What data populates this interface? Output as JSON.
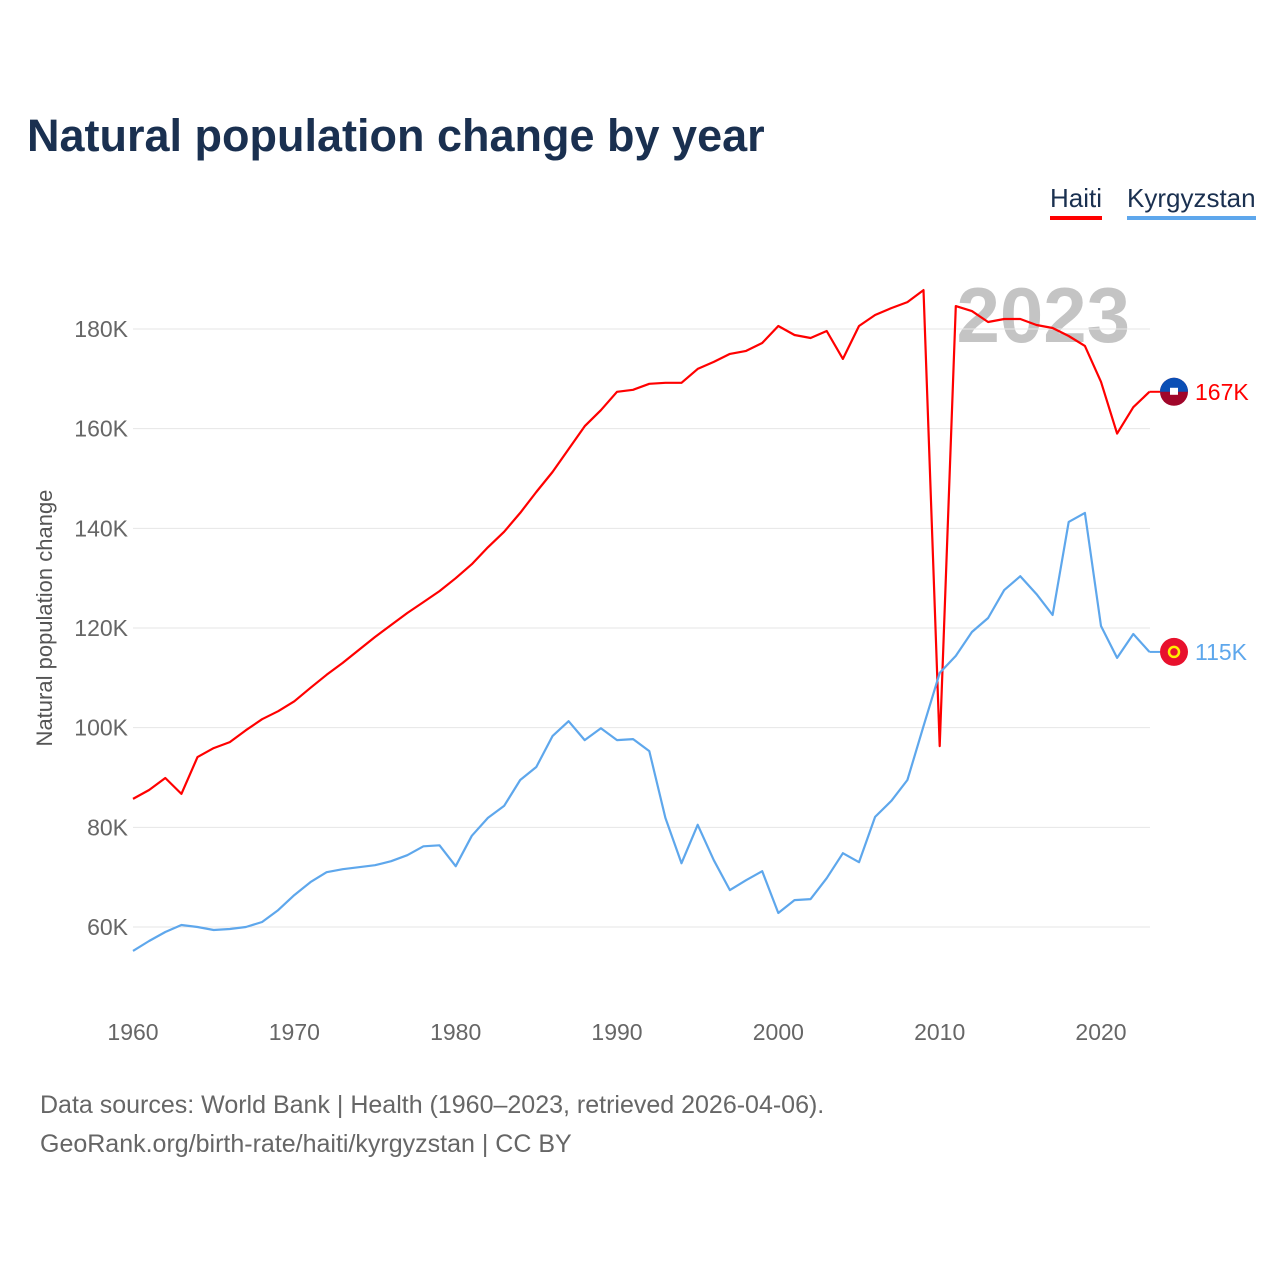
{
  "chart_data": {
    "type": "line",
    "title": "Natural population change by year",
    "xlabel": "",
    "ylabel": "Natural population change",
    "xlim": [
      1960,
      2023
    ],
    "ylim": [
      50000,
      190000
    ],
    "x_ticks": [
      1960,
      1970,
      1980,
      1990,
      2000,
      2010,
      2020
    ],
    "x_tick_labels": [
      "1960",
      "1970",
      "1980",
      "1990",
      "2000",
      "2010",
      "2020"
    ],
    "y_ticks": [
      60000,
      80000,
      100000,
      120000,
      140000,
      160000,
      180000
    ],
    "y_tick_labels": [
      "60K",
      "80K",
      "100K",
      "120K",
      "140K",
      "160K",
      "180K"
    ],
    "grid": true,
    "legend_position": "top-right",
    "year_watermark": "2023",
    "x": [
      1960,
      1961,
      1962,
      1963,
      1964,
      1965,
      1966,
      1967,
      1968,
      1969,
      1970,
      1971,
      1972,
      1973,
      1974,
      1975,
      1976,
      1977,
      1978,
      1979,
      1980,
      1981,
      1982,
      1983,
      1984,
      1985,
      1986,
      1987,
      1988,
      1989,
      1990,
      1991,
      1992,
      1993,
      1994,
      1995,
      1996,
      1997,
      1998,
      1999,
      2000,
      2001,
      2002,
      2003,
      2004,
      2005,
      2006,
      2007,
      2008,
      2009,
      2010,
      2011,
      2012,
      2013,
      2014,
      2015,
      2016,
      2017,
      2018,
      2019,
      2020,
      2021,
      2022,
      2023
    ],
    "series": [
      {
        "name": "Haiti",
        "color": "#ff0000",
        "end_label": "167K",
        "values": [
          85700,
          87500,
          89900,
          86700,
          94100,
          95900,
          97100,
          99500,
          101700,
          103300,
          105300,
          108000,
          110600,
          113000,
          115600,
          118200,
          120600,
          123000,
          125200,
          127400,
          130000,
          132800,
          136200,
          139300,
          143100,
          147300,
          151300,
          155900,
          160500,
          163700,
          167400,
          167800,
          169000,
          169200,
          169200,
          172000,
          173400,
          175000,
          175600,
          177200,
          180600,
          178800,
          178200,
          179600,
          174000,
          180600,
          182800,
          184200,
          185400,
          187800,
          96300,
          184600,
          183600,
          181400,
          182000,
          182000,
          180800,
          180200,
          178600,
          176600,
          169400,
          159000,
          164300,
          167400
        ]
      },
      {
        "name": "Kyrgyzstan",
        "color": "#5ea7ec",
        "end_label": "115K",
        "values": [
          55200,
          57200,
          59000,
          60400,
          60000,
          59400,
          59600,
          60000,
          61000,
          63400,
          66400,
          69000,
          71000,
          71600,
          72000,
          72400,
          73200,
          74400,
          76200,
          76400,
          72200,
          78300,
          81900,
          84300,
          89500,
          92100,
          98300,
          101300,
          97500,
          99900,
          97500,
          97700,
          95300,
          81900,
          72800,
          80500,
          73400,
          67400,
          69400,
          71200,
          62800,
          65400,
          65600,
          69800,
          74800,
          73000,
          82100,
          85300,
          89500,
          100300,
          111000,
          114400,
          119200,
          122000,
          127600,
          130400,
          126800,
          122600,
          141300,
          143100,
          120400,
          114000,
          118800,
          115200
        ]
      }
    ]
  },
  "footer": {
    "line1": "Data sources: World Bank | Health (1960–2023, retrieved 2026-04-06).",
    "line2": "GeoRank.org/birth-rate/haiti/kyrgyzstan | CC BY"
  }
}
